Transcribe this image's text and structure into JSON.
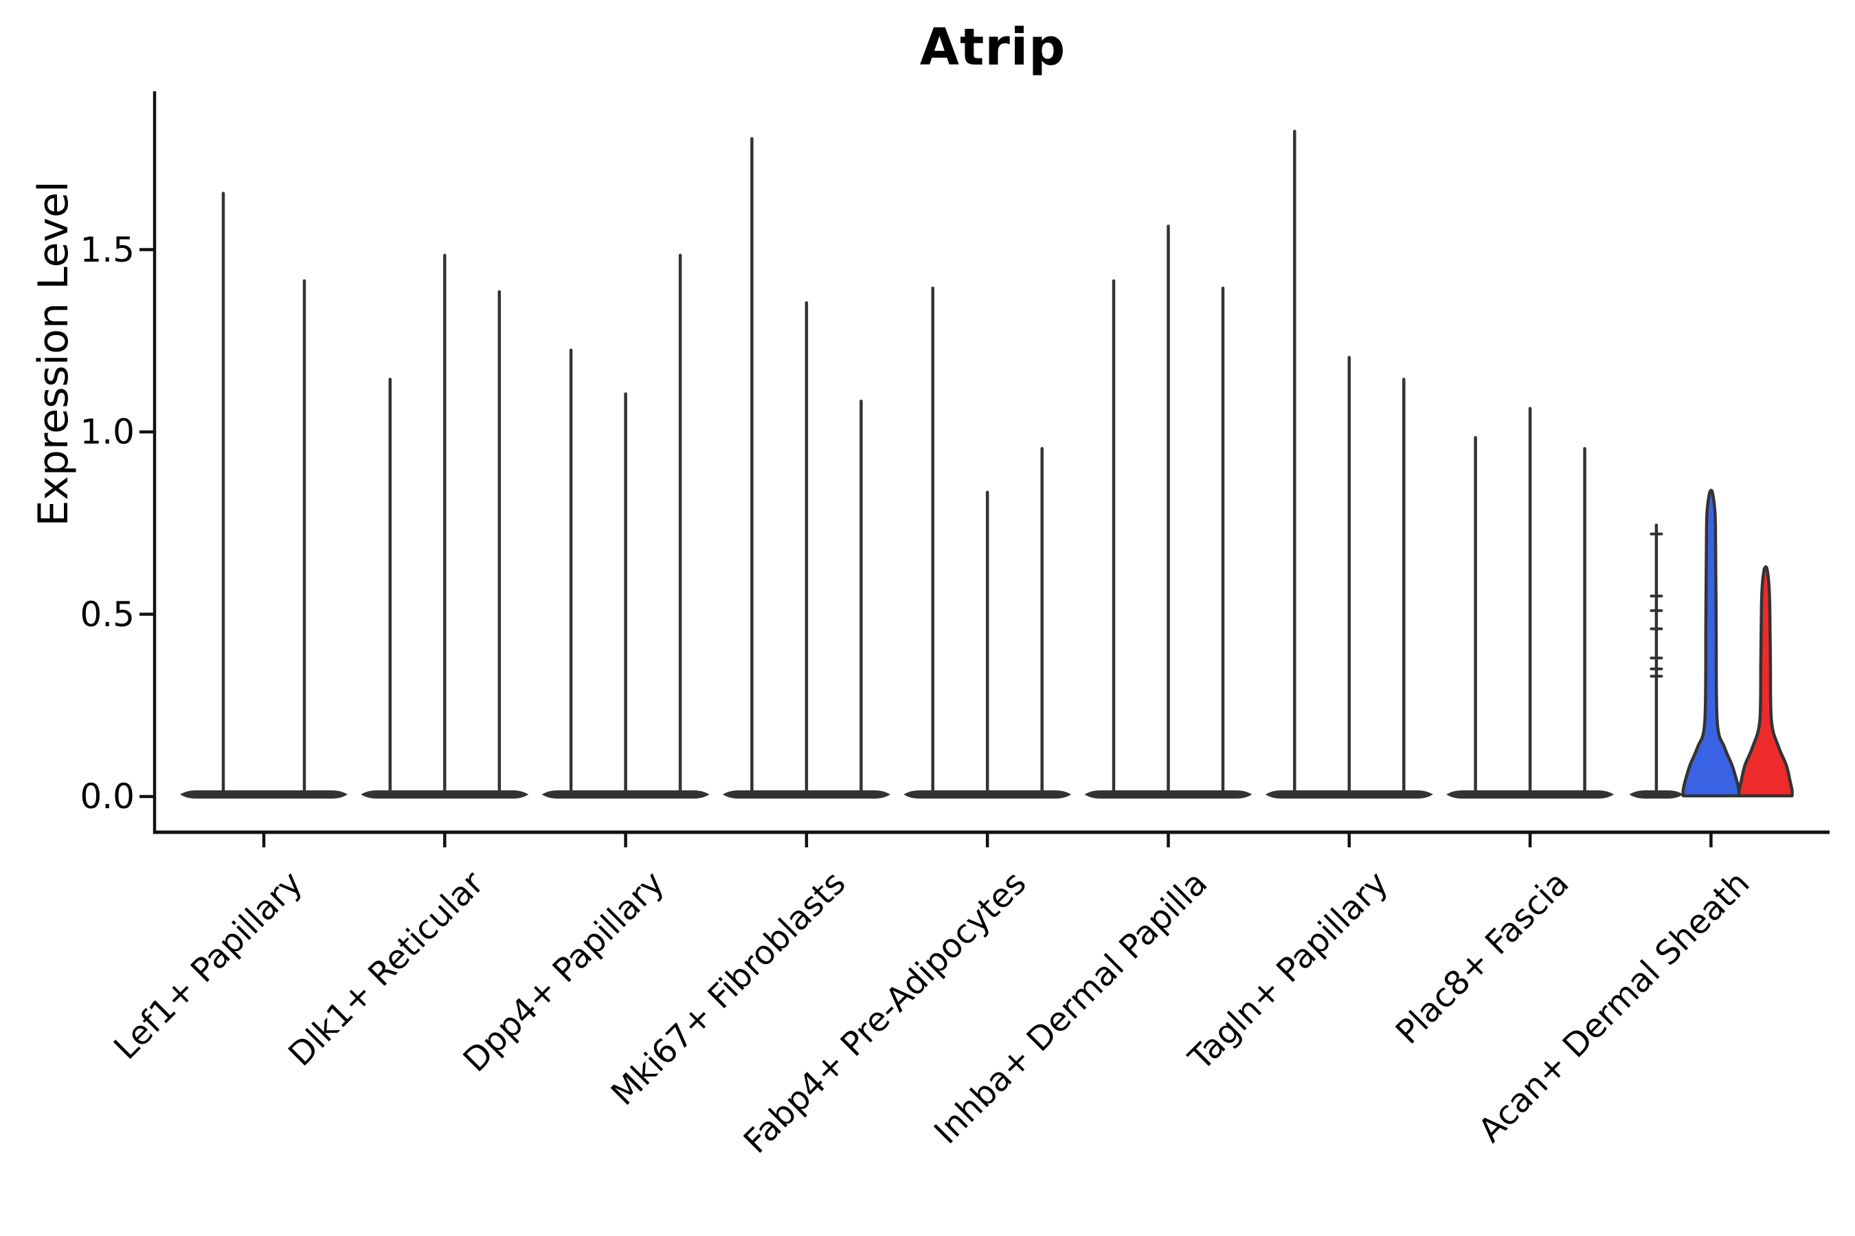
{
  "chart_data": {
    "type": "violin",
    "title": "Atrip",
    "ylabel": "Expression Level",
    "ylim": [
      -0.09,
      1.93
    ],
    "yticks": [
      0.0,
      0.5,
      1.0,
      1.5
    ],
    "ytick_labels": [
      "0.0",
      "0.5",
      "1.0",
      "1.5"
    ],
    "grid": false,
    "legend": null,
    "categories": [
      "Lef1+ Papillary",
      "Dlk1+ Reticular",
      "Dpp4+ Papillary",
      "Mki67+ Fibroblasts",
      "Fabp4+ Pre-Adipocytes",
      "Inhba+ Dermal Papilla",
      "Tagln+ Papillary",
      "Plac8+ Fascia",
      "Acan+ Dermal Sheath"
    ],
    "series": [
      {
        "category": "Lef1+ Papillary",
        "violins": [
          {
            "peak": 1.66,
            "style": "line"
          },
          {
            "peak": 1.42,
            "style": "line"
          }
        ]
      },
      {
        "category": "Dlk1+ Reticular",
        "violins": [
          {
            "peak": 1.15,
            "style": "line"
          },
          {
            "peak": 1.49,
            "style": "line"
          },
          {
            "peak": 1.39,
            "style": "line"
          }
        ]
      },
      {
        "category": "Dpp4+ Papillary",
        "violins": [
          {
            "peak": 1.23,
            "style": "line"
          },
          {
            "peak": 1.11,
            "style": "line"
          },
          {
            "peak": 1.49,
            "style": "line"
          }
        ]
      },
      {
        "category": "Mki67+ Fibroblasts",
        "violins": [
          {
            "peak": 1.81,
            "style": "line"
          },
          {
            "peak": 1.36,
            "style": "line"
          },
          {
            "peak": 1.09,
            "style": "line"
          }
        ]
      },
      {
        "category": "Fabp4+ Pre-Adipocytes",
        "violins": [
          {
            "peak": 1.4,
            "style": "line"
          },
          {
            "peak": 0.84,
            "style": "line"
          },
          {
            "peak": 0.96,
            "style": "line"
          }
        ]
      },
      {
        "category": "Inhba+ Dermal Papilla",
        "violins": [
          {
            "peak": 1.42,
            "style": "line"
          },
          {
            "peak": 1.57,
            "style": "line"
          },
          {
            "peak": 1.4,
            "style": "line"
          }
        ]
      },
      {
        "category": "Tagln+ Papillary",
        "violins": [
          {
            "peak": 1.83,
            "style": "line"
          },
          {
            "peak": 1.21,
            "style": "line"
          },
          {
            "peak": 1.15,
            "style": "line"
          }
        ]
      },
      {
        "category": "Plac8+ Fascia",
        "violins": [
          {
            "peak": 0.99,
            "style": "line"
          },
          {
            "peak": 1.07,
            "style": "line"
          },
          {
            "peak": 0.96,
            "style": "line"
          }
        ]
      },
      {
        "category": "Acan+ Dermal Sheath",
        "violins": [
          {
            "peak": 0.75,
            "style": "line",
            "points": [
              0.72,
              0.55,
              0.51,
              0.46,
              0.38,
              0.35,
              0.33
            ]
          },
          {
            "peak": 0.84,
            "style": "filled",
            "fill": "#3A63E3"
          },
          {
            "peak": 0.63,
            "style": "filled",
            "fill": "#EE2B2B"
          }
        ]
      }
    ],
    "colors": {
      "violin_edge": "#333333",
      "axis": "#111111",
      "text": "#000000",
      "split_blue": "#3A63E3",
      "split_red": "#EE2B2B"
    }
  }
}
